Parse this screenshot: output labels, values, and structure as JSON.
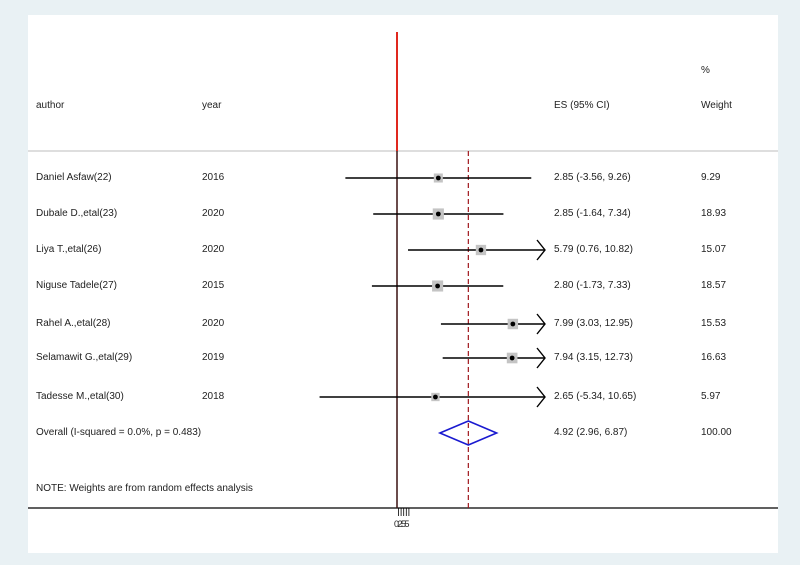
{
  "chart_data": {
    "type": "forest",
    "headers": {
      "author": "author",
      "year": "year",
      "es": "ES (95% CI)",
      "weight_line1": "%",
      "weight_line2": "Weight"
    },
    "studies": [
      {
        "author": "Daniel Asfaw(22)",
        "year": "2016",
        "es": 2.85,
        "lo": -3.56,
        "hi": 9.26,
        "ci_text": "2.85 (-3.56, 9.26)",
        "weight": 9.29,
        "weight_text": "9.29"
      },
      {
        "author": "Dubale D.,etal(23)",
        "year": "2020",
        "es": 2.85,
        "lo": -1.64,
        "hi": 7.34,
        "ci_text": "2.85 (-1.64, 7.34)",
        "weight": 18.93,
        "weight_text": "18.93"
      },
      {
        "author": "Liya T.,etal(26)",
        "year": "2020",
        "es": 5.79,
        "lo": 0.76,
        "hi": 10.82,
        "ci_text": "5.79 (0.76, 10.82)",
        "weight": 15.07,
        "weight_text": "15.07"
      },
      {
        "author": "Niguse Tadele(27)",
        "year": "2015",
        "es": 2.8,
        "lo": -1.73,
        "hi": 7.33,
        "ci_text": "2.80 (-1.73, 7.33)",
        "weight": 18.57,
        "weight_text": "18.57"
      },
      {
        "author": "Rahel A.,etal(28)",
        "year": "2020",
        "es": 7.99,
        "lo": 3.03,
        "hi": 12.95,
        "ci_text": "7.99 (3.03, 12.95)",
        "weight": 15.53,
        "weight_text": "15.53"
      },
      {
        "author": "Selamawit G.,etal(29)",
        "year": "2019",
        "es": 7.94,
        "lo": 3.15,
        "hi": 12.73,
        "ci_text": "7.94 (3.15, 12.73)",
        "weight": 16.63,
        "weight_text": "16.63"
      },
      {
        "author": "Tadesse M.,etal(30)",
        "year": "2018",
        "es": 2.65,
        "lo": -5.34,
        "hi": 10.65,
        "ci_text": "2.65 (-5.34, 10.65)",
        "weight": 5.97,
        "weight_text": "5.97"
      }
    ],
    "overall": {
      "label": "Overall  (I-squared = 0.0%, p = 0.483)",
      "es": 4.92,
      "lo": 2.96,
      "hi": 6.87,
      "ci_text": "4.92 (2.96, 6.87)",
      "weight_text": "100.00"
    },
    "note": "NOTE: Weights are from random effects analysis",
    "null_value": 0,
    "xlim": [
      -5.34,
      12.0
    ],
    "x_tick_label": "0255",
    "colors": {
      "null_line": "#3a1010",
      "ref_line_top": "#e0281e",
      "overall_line": "#a0181e",
      "diamond": "#1a1ad0",
      "weight_box": "#c4c4c4",
      "ci_line": "#000000",
      "background": "#e9f1f4",
      "plot_bg": "#ffffff"
    }
  }
}
